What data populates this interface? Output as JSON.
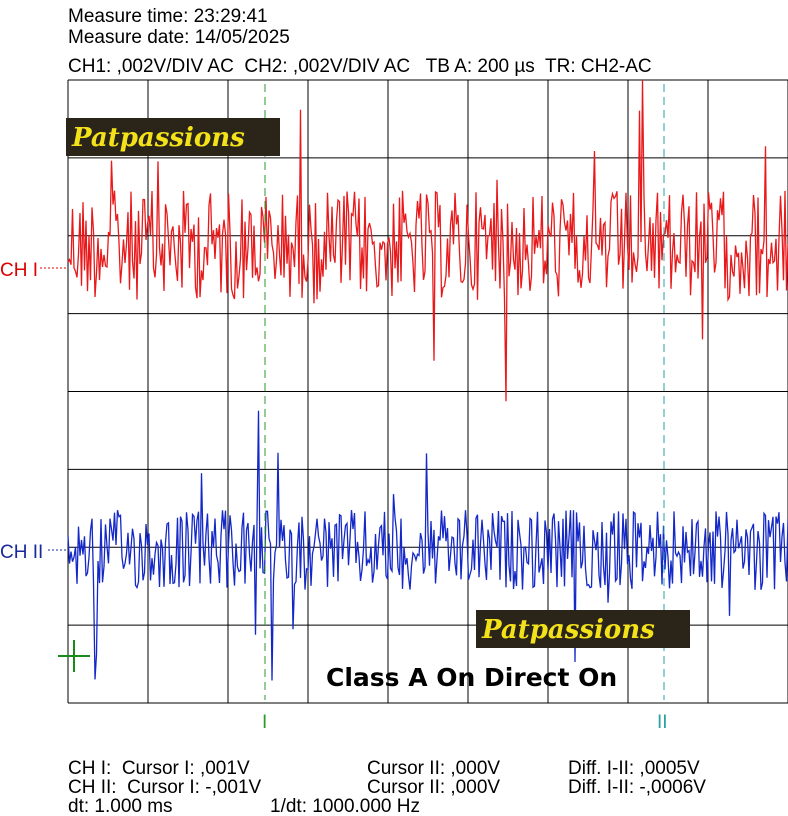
{
  "header": {
    "measure_time": "Measure time: 23:29:41",
    "measure_date": "Measure date: 14/05/2025",
    "settings": "CH1: ,002V/DIV AC  CH2: ,002V/DIV AC   TB A: 200 µs  TR: CH2-AC"
  },
  "watermarks": [
    "Patpassions",
    "Patpassions"
  ],
  "caption": "Class A On Direct On",
  "channels": [
    "CH I",
    "CH II"
  ],
  "cursors": [
    "I",
    "II"
  ],
  "readout": {
    "rows": [
      [
        "CH I:  Cursor I: ,001V",
        "Cursor II: ,000V",
        "Diff. I-II: ,0005V"
      ],
      [
        "CH II:  Cursor I: -,001V",
        "Cursor II: ,000V",
        "Diff. I-II: -,0006V"
      ]
    ],
    "dt": "dt: 1.000 ms",
    "inv_dt": "1/dt: 1000.000 Hz"
  }
}
